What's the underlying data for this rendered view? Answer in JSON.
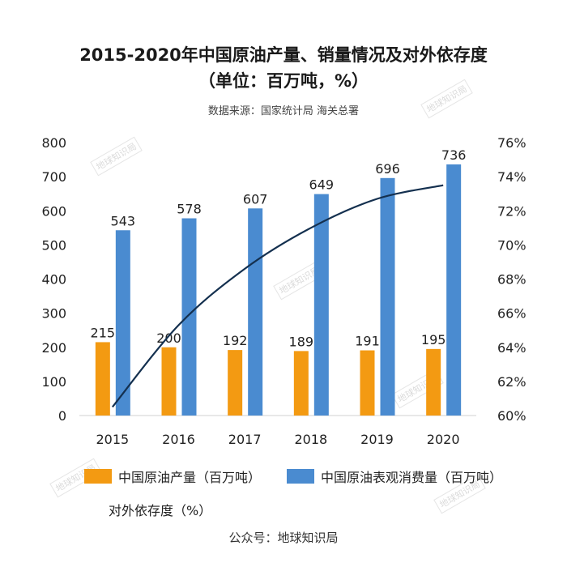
{
  "title_line1": "2015-2020年中国原油产量、销量情况及对外依存度",
  "title_line2": "（单位：百万吨，%）",
  "source": "数据来源：国家统计局 海关总署",
  "watermark": "地球知识局",
  "footer": "公众号：地球知识局",
  "chart_data": {
    "type": "bar",
    "categories": [
      "2015",
      "2016",
      "2017",
      "2018",
      "2019",
      "2020"
    ],
    "series": [
      {
        "name": "中国原油产量（百万吨）",
        "kind": "bar",
        "color": "#f39a12",
        "values": [
          215,
          200,
          192,
          189,
          191,
          195
        ]
      },
      {
        "name": "中国原油表观消费量（百万吨）",
        "kind": "bar",
        "color": "#4a8bd0",
        "values": [
          543,
          578,
          607,
          649,
          696,
          736
        ]
      },
      {
        "name": "对外依存度（%）",
        "kind": "line",
        "axis": "right",
        "color": "#14304f",
        "values": [
          60.5,
          65.3,
          68.6,
          71.0,
          72.7,
          73.5
        ]
      }
    ],
    "y_left": {
      "min": 0,
      "max": 800,
      "ticks": [
        "0",
        "100",
        "200",
        "300",
        "400",
        "500",
        "600",
        "700",
        "800"
      ]
    },
    "y_right": {
      "min": 60,
      "max": 76,
      "ticks": [
        "60%",
        "62%",
        "64%",
        "66%",
        "68%",
        "70%",
        "72%",
        "74%",
        "76%"
      ]
    },
    "grid": false,
    "legend_position": "bottom"
  },
  "colors": {
    "production": "#f39a12",
    "consumption": "#4a8bd0",
    "dependence": "#14304f"
  }
}
